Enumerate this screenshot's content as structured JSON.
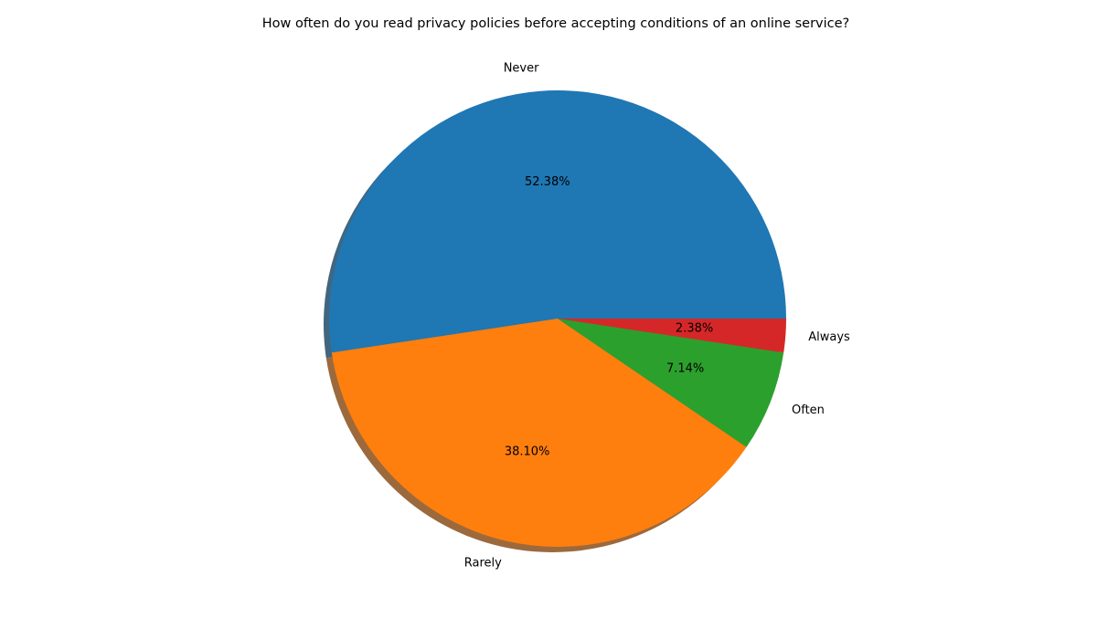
{
  "chart_data": {
    "type": "pie",
    "title": "How often do you read privacy policies before accepting conditions of an online service?",
    "categories": [
      "Never",
      "Rarely",
      "Often",
      "Always"
    ],
    "values": [
      52.38,
      38.1,
      7.14,
      2.38
    ],
    "value_labels": [
      "52.38%",
      "38.10%",
      "7.14%",
      "2.38%"
    ],
    "colors": [
      "#1f77b4",
      "#ff7f0e",
      "#2ca02c",
      "#d62728"
    ],
    "start_angle_deg": 0,
    "direction": "counterclockwise",
    "shadow": true,
    "legend": "none"
  }
}
